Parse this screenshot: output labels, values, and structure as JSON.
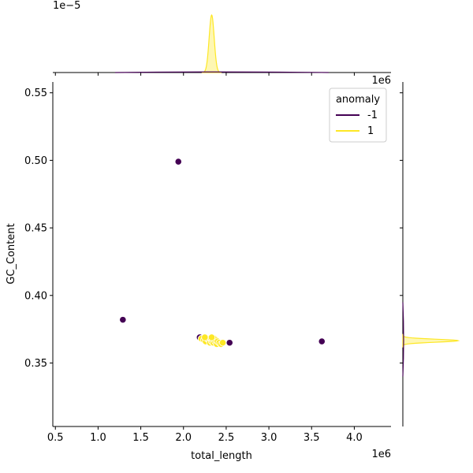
{
  "chart_data": {
    "type": "scatter",
    "xlabel": "total_length",
    "ylabel": "GC_Content",
    "x_offset_text": "1e6",
    "top_marginal_offset_text": "1e−5",
    "xlim": [
      470000,
      4430000
    ],
    "ylim": [
      0.303,
      0.558
    ],
    "xticks": [
      500000,
      1000000,
      1500000,
      2000000,
      2500000,
      3000000,
      3500000,
      4000000
    ],
    "xtick_labels": [
      "0.5",
      "1.0",
      "1.5",
      "2.0",
      "2.5",
      "3.0",
      "3.5",
      "4.0"
    ],
    "yticks": [
      0.35,
      0.4,
      0.45,
      0.5,
      0.55
    ],
    "ytick_labels": [
      "0.35",
      "0.40",
      "0.45",
      "0.50",
      "0.55"
    ],
    "grid": false,
    "legend": {
      "title": "anomaly",
      "placement": "top-right",
      "entries": [
        {
          "label": "-1",
          "color": "#440154"
        },
        {
          "label": "1",
          "color": "#fde725"
        }
      ]
    },
    "series": [
      {
        "name": "-1",
        "color": "#440154",
        "points": [
          {
            "x": 1940000,
            "y": 0.499
          },
          {
            "x": 1290000,
            "y": 0.382
          },
          {
            "x": 2190000,
            "y": 0.369
          },
          {
            "x": 2540000,
            "y": 0.365
          },
          {
            "x": 3620000,
            "y": 0.366
          }
        ]
      },
      {
        "name": "1",
        "color": "#fde725",
        "points": [
          {
            "x": 2210000,
            "y": 0.368
          },
          {
            "x": 2240000,
            "y": 0.367
          },
          {
            "x": 2260000,
            "y": 0.366
          },
          {
            "x": 2280000,
            "y": 0.368
          },
          {
            "x": 2300000,
            "y": 0.367
          },
          {
            "x": 2310000,
            "y": 0.365
          },
          {
            "x": 2320000,
            "y": 0.368
          },
          {
            "x": 2330000,
            "y": 0.366
          },
          {
            "x": 2340000,
            "y": 0.367
          },
          {
            "x": 2350000,
            "y": 0.365
          },
          {
            "x": 2360000,
            "y": 0.368
          },
          {
            "x": 2370000,
            "y": 0.366
          },
          {
            "x": 2380000,
            "y": 0.367
          },
          {
            "x": 2390000,
            "y": 0.364
          },
          {
            "x": 2400000,
            "y": 0.366
          },
          {
            "x": 2420000,
            "y": 0.365
          },
          {
            "x": 2440000,
            "y": 0.364
          },
          {
            "x": 2460000,
            "y": 0.365
          },
          {
            "x": 2250000,
            "y": 0.369
          },
          {
            "x": 2330000,
            "y": 0.369
          }
        ]
      }
    ],
    "marginal_x": {
      "type": "kde",
      "series": [
        {
          "name": "-1",
          "color": "#440154",
          "shape": "flat",
          "center": 2300000
        },
        {
          "name": "1",
          "color": "#fde725",
          "shape": "peak",
          "center": 2330000
        }
      ]
    },
    "marginal_y": {
      "type": "kde",
      "series": [
        {
          "name": "-1",
          "color": "#440154",
          "shape": "flat",
          "center": 0.366
        },
        {
          "name": "1",
          "color": "#fde725",
          "shape": "peak",
          "center": 0.3665
        }
      ]
    }
  }
}
